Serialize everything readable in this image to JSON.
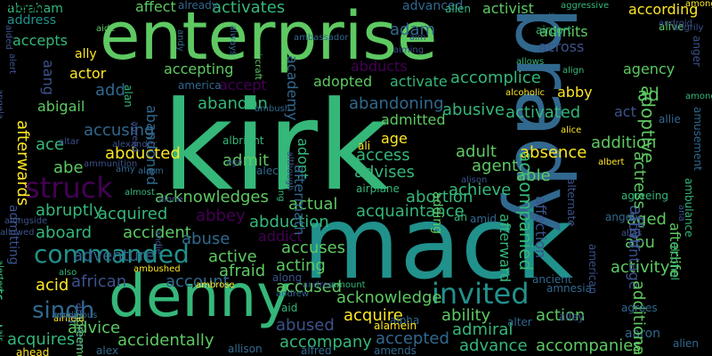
{
  "colors": {
    "background": "#000000",
    "palette": [
      "#5ec962",
      "#35b779",
      "#21918c",
      "#31688e",
      "#3b528b",
      "#443983",
      "#440154",
      "#90d743",
      "#fde725",
      "#2e6f8e"
    ]
  },
  "words": [
    {
      "text": "enterprise"
    },
    {
      "text": "kirk"
    },
    {
      "text": "mack"
    },
    {
      "text": "brady"
    },
    {
      "text": "denny"
    },
    {
      "text": "struck"
    },
    {
      "text": "commanded"
    },
    {
      "text": "invited"
    },
    {
      "text": "singh"
    },
    {
      "text": "abraham"
    },
    {
      "text": "address"
    },
    {
      "text": "affect"
    },
    {
      "text": "activates"
    },
    {
      "text": "advanced"
    },
    {
      "text": "activist"
    },
    {
      "text": "according"
    },
    {
      "text": "adam"
    },
    {
      "text": "admits"
    },
    {
      "text": "accepts"
    },
    {
      "text": "abducts"
    },
    {
      "text": "across"
    },
    {
      "text": "agency"
    },
    {
      "text": "accepting"
    },
    {
      "text": "academy"
    },
    {
      "text": "adopted"
    },
    {
      "text": "activate"
    },
    {
      "text": "accomplice"
    },
    {
      "text": "abby"
    },
    {
      "text": "ad"
    },
    {
      "text": "actor"
    },
    {
      "text": "accept"
    },
    {
      "text": "abigail"
    },
    {
      "text": "abandon"
    },
    {
      "text": "abandoning"
    },
    {
      "text": "admitted"
    },
    {
      "text": "abusive"
    },
    {
      "text": "act"
    },
    {
      "text": "accusing"
    },
    {
      "text": "activated"
    },
    {
      "text": "ace"
    },
    {
      "text": "age"
    },
    {
      "text": "addition"
    },
    {
      "text": "abducted"
    },
    {
      "text": "adult"
    },
    {
      "text": "absence"
    },
    {
      "text": "admit"
    },
    {
      "text": "access"
    },
    {
      "text": "able"
    },
    {
      "text": "abe"
    },
    {
      "text": "advises"
    },
    {
      "text": "agent"
    },
    {
      "text": "achieve"
    },
    {
      "text": "abruptly"
    },
    {
      "text": "acknowledges"
    },
    {
      "text": "abortion"
    },
    {
      "text": "acquired"
    },
    {
      "text": "abbey"
    },
    {
      "text": "acquaintance"
    },
    {
      "text": "aged"
    },
    {
      "text": "aboard"
    },
    {
      "text": "accident"
    },
    {
      "text": "abduction"
    },
    {
      "text": "actual"
    },
    {
      "text": "abuse"
    },
    {
      "text": "abu"
    },
    {
      "text": "addict"
    },
    {
      "text": "afford"
    },
    {
      "text": "adventure"
    },
    {
      "text": "active"
    },
    {
      "text": "accuses"
    },
    {
      "text": "activity"
    },
    {
      "text": "african"
    },
    {
      "text": "afraid"
    },
    {
      "text": "acting"
    },
    {
      "text": "account"
    },
    {
      "text": "accused"
    },
    {
      "text": "acid"
    },
    {
      "text": "acknowledge"
    },
    {
      "text": "ability"
    },
    {
      "text": "action"
    },
    {
      "text": "acquire"
    },
    {
      "text": "advice"
    },
    {
      "text": "abused"
    },
    {
      "text": "admiral"
    },
    {
      "text": "acquires"
    },
    {
      "text": "accidentally"
    },
    {
      "text": "accompany"
    },
    {
      "text": "accepted"
    },
    {
      "text": "advance"
    },
    {
      "text": "accompanies"
    },
    {
      "text": "aaron"
    },
    {
      "text": "alex"
    },
    {
      "text": "allison"
    },
    {
      "text": "alfred"
    },
    {
      "text": "amends"
    },
    {
      "text": "accompanied"
    },
    {
      "text": "advantage"
    },
    {
      "text": "additional"
    },
    {
      "text": "affair"
    },
    {
      "text": "actress"
    },
    {
      "text": "adoptive"
    },
    {
      "text": "afterlife"
    },
    {
      "text": "afterwards"
    },
    {
      "text": "admitting"
    },
    {
      "text": "adopt"
    },
    {
      "text": "aftermath"
    },
    {
      "text": "affection"
    },
    {
      "text": "afterward"
    },
    {
      "text": "adding"
    },
    {
      "text": "add"
    },
    {
      "text": "aang"
    },
    {
      "text": "abandoned"
    },
    {
      "text": "ally"
    },
    {
      "text": "aide"
    },
    {
      "text": "already"
    },
    {
      "text": "always"
    },
    {
      "text": "allen"
    },
    {
      "text": "aggressive"
    },
    {
      "text": "alliance"
    },
    {
      "text": "airport"
    },
    {
      "text": "allows"
    },
    {
      "text": "alive"
    },
    {
      "text": "ahead"
    },
    {
      "text": "align"
    },
    {
      "text": "among"
    },
    {
      "text": "allie"
    },
    {
      "text": "alice"
    },
    {
      "text": "albert"
    },
    {
      "text": "alan"
    },
    {
      "text": "america"
    },
    {
      "text": "ambush"
    },
    {
      "text": "albright"
    },
    {
      "text": "alec"
    },
    {
      "text": "allowing"
    },
    {
      "text": "ali"
    },
    {
      "text": "alison"
    },
    {
      "text": "airplane"
    },
    {
      "text": "alcoholic"
    },
    {
      "text": "amy"
    },
    {
      "text": "alarm"
    },
    {
      "text": "alone"
    },
    {
      "text": "almost"
    },
    {
      "text": "agreeing"
    },
    {
      "text": "angel"
    },
    {
      "text": "amid"
    },
    {
      "text": "ah"
    },
    {
      "text": "alias"
    },
    {
      "text": "ambushed"
    },
    {
      "text": "ambrose"
    },
    {
      "text": "along"
    },
    {
      "text": "andrew"
    },
    {
      "text": "andrea"
    },
    {
      "text": "amount"
    },
    {
      "text": "ancient"
    },
    {
      "text": "amnesia"
    },
    {
      "text": "agrees"
    },
    {
      "text": "alpha"
    },
    {
      "text": "alley"
    },
    {
      "text": "alter"
    },
    {
      "text": "alien"
    },
    {
      "text": "alamein"
    },
    {
      "text": "aid"
    },
    {
      "text": "ambition"
    },
    {
      "text": "agreement"
    },
    {
      "text": "aim"
    },
    {
      "text": "aiming"
    },
    {
      "text": "aircraft"
    },
    {
      "text": "air"
    },
    {
      "text": "alert"
    },
    {
      "text": "alongside"
    },
    {
      "text": "although"
    },
    {
      "text": "allowed"
    },
    {
      "text": "alerted"
    },
    {
      "text": "also"
    },
    {
      "text": "angela"
    },
    {
      "text": "airfield"
    },
    {
      "text": "ambitious"
    },
    {
      "text": "amulet"
    },
    {
      "text": "ammunition"
    },
    {
      "text": "altar"
    },
    {
      "text": "alexander"
    },
    {
      "text": "aided"
    },
    {
      "text": "agreed"
    },
    {
      "text": "ambassador"
    },
    {
      "text": "andy"
    },
    {
      "text": "ago"
    },
    {
      "text": "andie"
    },
    {
      "text": "android"
    },
    {
      "text": "anger"
    },
    {
      "text": "amusement"
    },
    {
      "text": "alternate"
    },
    {
      "text": "american"
    },
    {
      "text": "ambulance"
    },
    {
      "text": "alcohol"
    },
    {
      "text": "angrily"
    },
    {
      "text": "ana"
    },
    {
      "text": "amongst"
    },
    {
      "text": "ahead"
    }
  ]
}
